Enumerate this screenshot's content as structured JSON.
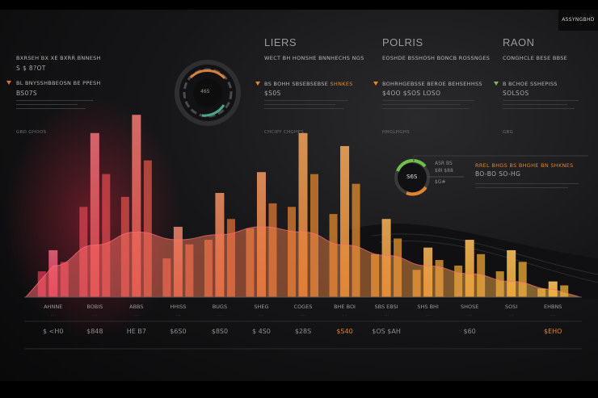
{
  "corner_button": "ASSYNGBHD",
  "left_panel": {
    "header": "BXRSEH BX XE BXRR BNNESH",
    "value": "S $ 8?OT",
    "subheader": "BL BNYSSHBBEOSN BE PPESH",
    "subvalue": "BS07S",
    "footer": "GRD GHOOS",
    "color": "#e46a3a"
  },
  "panels": [
    {
      "title": "LIERS",
      "subtitle": "WECT BH HONSHE BNNHECHS NGS",
      "label": "BS BOHH SBSEBSEBSE",
      "label_accent": "SHNKES",
      "value": "$S0S",
      "footer": "CHCIPY CHGHES",
      "color": "#e2842a"
    },
    {
      "title": "POLRIS",
      "subtitle": "EOSHDE BSSHOSH BONCB ROSSNGES",
      "label": "BOHRHGEBSSE BEROE BEHSEHHSS",
      "value": "$4OO $SOS LOSO",
      "footer": "HHGLHGHS",
      "color": "#e2842a"
    },
    {
      "title": "RAON",
      "subtitle": "CONGHCLE BESE BBSE",
      "label": "B BCHOE SSHEPISS",
      "value": "SOLSOS",
      "footer": "GBG",
      "color": "#7ab85a"
    }
  ],
  "callout": {
    "label_top": "ASR BS",
    "label_mid": "$8I $88",
    "label_bot": "$G#",
    "gauge": "S6S",
    "title": "RREL BHGS BS BHGHE BN SHKNES",
    "value": "BO-BO SO-HG"
  },
  "gauge_top": {
    "value": "46S"
  },
  "x_labels": [
    "AHNNE",
    "BOBIS",
    "ABBS",
    "HHISS",
    "BUGS",
    "SHEG",
    "COGES",
    "BHE BOI",
    "SBS EBSI",
    "SHS BHI",
    "SHOSE",
    "SOSI",
    "EHBNS"
  ],
  "x_values": [
    "$ <H0",
    "$848",
    "HE B7",
    "$6S0",
    "$8S0",
    "$ 4S0",
    "$28S",
    "$S40",
    "$OS $AH",
    "",
    "$60",
    "",
    "$EHO"
  ],
  "chart_data": {
    "type": "bar",
    "categories": [
      "AHNNE",
      "BOBIS",
      "ABBS",
      "HHISS",
      "BUGS",
      "SHEG",
      "COGES",
      "BHE BOI",
      "SBS EBSI",
      "SHS BHI",
      "SHOSE",
      "SOSI",
      "EHBNS"
    ],
    "values": [
      18,
      63,
      70,
      27,
      40,
      48,
      63,
      58,
      30,
      19,
      22,
      18,
      6
    ],
    "overlay_area": [
      12,
      20,
      25,
      22,
      24,
      27,
      25,
      20,
      16,
      12,
      9,
      6,
      3
    ],
    "grid": false,
    "colors": {
      "start": "#d83a55",
      "mid": "#e0832f",
      "end": "#f2b434",
      "overlay": "#ff6d7a"
    }
  }
}
